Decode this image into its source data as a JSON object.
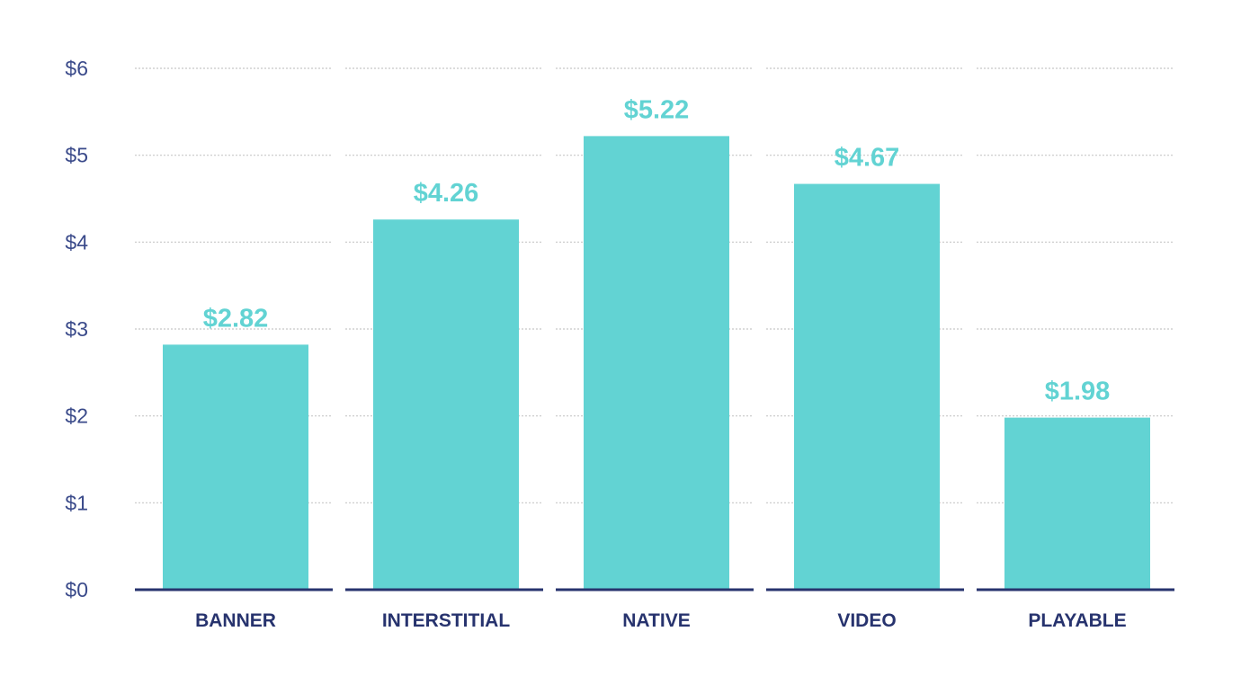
{
  "chart_data": {
    "type": "bar",
    "title": "",
    "xlabel": "",
    "ylabel": "",
    "categories": [
      "BANNER",
      "INTERSTITIAL",
      "NATIVE",
      "VIDEO",
      "PLAYABLE"
    ],
    "values": [
      2.82,
      4.26,
      5.22,
      4.67,
      1.98
    ],
    "value_labels": [
      "$2.82",
      "$4.26",
      "$5.22",
      "$4.67",
      "$1.98"
    ],
    "ylim": [
      0,
      6
    ],
    "yticks": [
      0,
      1,
      2,
      3,
      4,
      5,
      6
    ],
    "ytick_labels": [
      "$0",
      "$1",
      "$2",
      "$3",
      "$4",
      "$5",
      "$6"
    ],
    "grid": true,
    "legend": "none",
    "colors": {
      "bar": "#62d3d3",
      "data_label": "#62d3d3",
      "baseline": "#27336e",
      "grid": "#c8c8c8",
      "ytick": "#3a4a8a",
      "xtick": "#27336e"
    }
  }
}
